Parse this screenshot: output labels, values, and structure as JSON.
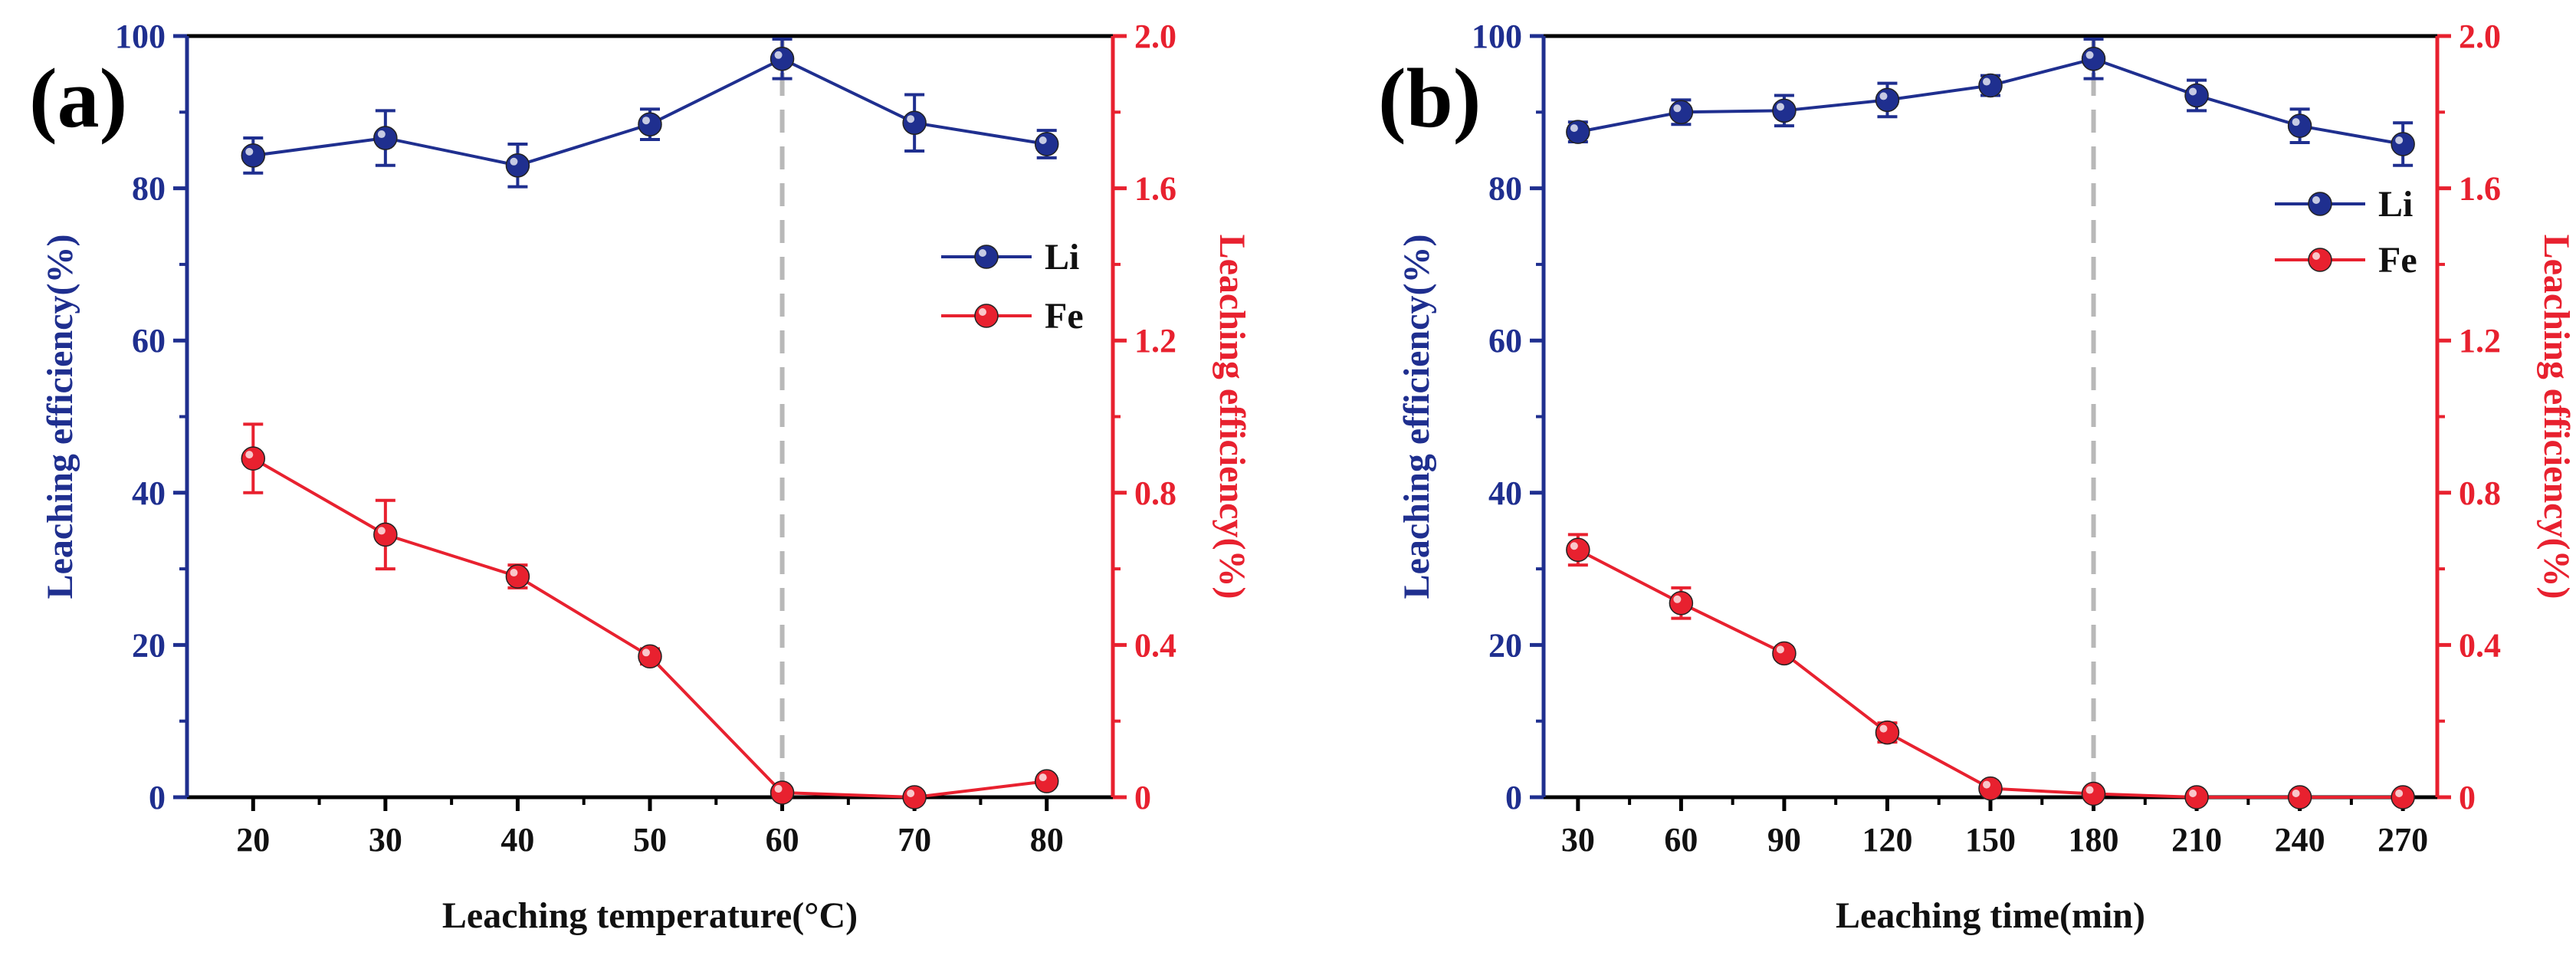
{
  "colors": {
    "li": "#1f2f8f",
    "fe": "#e8212f",
    "guide": "#b8b8b8",
    "axis": "#000000"
  },
  "chart_data": [
    {
      "type": "line",
      "panel_label": "(a)",
      "xlabel": "Leaching temperature(°C)",
      "ylabel": "Leaching efficiency(%)",
      "ylabel_right": "Leaching efficiency(%)",
      "x": [
        20,
        30,
        40,
        50,
        60,
        70,
        80
      ],
      "xlim": [
        15,
        85
      ],
      "xticks": [
        20,
        30,
        40,
        50,
        60,
        70,
        80
      ],
      "ylim": [
        0,
        100
      ],
      "yticks": [
        0,
        20,
        40,
        60,
        80,
        100
      ],
      "ylim_right": [
        0,
        2.0
      ],
      "yticks_right": [
        "0",
        "0.4",
        "0.8",
        "1.2",
        "1.6",
        "2.0"
      ],
      "guide_x": 60,
      "legend_position": "right",
      "series": [
        {
          "name": "Li",
          "axis": "left",
          "values": [
            84.3,
            86.6,
            83.0,
            88.4,
            97.0,
            88.6,
            85.8
          ],
          "errors": [
            2.3,
            3.6,
            2.8,
            2.0,
            2.6,
            3.7,
            1.8
          ]
        },
        {
          "name": "Fe",
          "axis": "right",
          "values": [
            0.89,
            0.69,
            0.58,
            0.37,
            0.012,
            0.0,
            0.042
          ],
          "errors": [
            0.09,
            0.09,
            0.03,
            0.02,
            0.01,
            0.005,
            0.01
          ]
        }
      ]
    },
    {
      "type": "line",
      "panel_label": "(b)",
      "xlabel": "Leaching time(min)",
      "ylabel": "Leaching efficiency(%)",
      "ylabel_right": "Leaching efficiency(%)",
      "x": [
        30,
        60,
        90,
        120,
        150,
        180,
        210,
        240,
        270
      ],
      "xlim": [
        20,
        280
      ],
      "xticks": [
        30,
        60,
        90,
        120,
        150,
        180,
        210,
        240,
        270
      ],
      "ylim": [
        0,
        100
      ],
      "yticks": [
        0,
        20,
        40,
        60,
        80,
        100
      ],
      "ylim_right": [
        0,
        2.0
      ],
      "yticks_right": [
        "0",
        "0.4",
        "0.8",
        "1.2",
        "1.6",
        "2.0"
      ],
      "guide_x": 180,
      "legend_position": "top-right",
      "series": [
        {
          "name": "Li",
          "axis": "left",
          "values": [
            87.4,
            90.0,
            90.2,
            91.6,
            93.5,
            97.0,
            92.2,
            88.2,
            85.8
          ],
          "errors": [
            1.3,
            1.6,
            2.0,
            2.2,
            1.3,
            2.6,
            2.0,
            2.2,
            2.8
          ]
        },
        {
          "name": "Fe",
          "axis": "right",
          "values": [
            0.65,
            0.51,
            0.378,
            0.17,
            0.023,
            0.009,
            0.0,
            0.0,
            0.0
          ],
          "errors": [
            0.04,
            0.04,
            0.015,
            0.025,
            0.01,
            0.008,
            0.005,
            0.005,
            0.005
          ]
        }
      ]
    }
  ]
}
